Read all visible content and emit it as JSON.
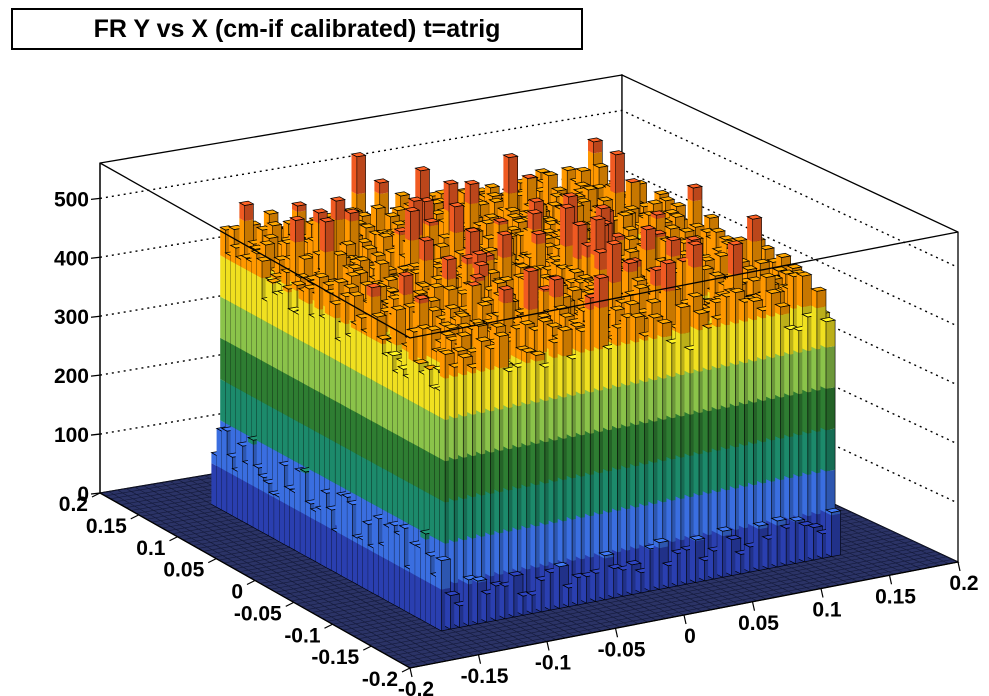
{
  "chart_data": {
    "type": "lego3d",
    "title": "FR Y vs X (cm-if calibrated) t=atrig",
    "xlabel": "",
    "ylabel": "",
    "zlabel": "",
    "xlim": [
      -0.2,
      0.2
    ],
    "ylim": [
      -0.2,
      0.2
    ],
    "zlim": [
      0,
      560
    ],
    "x_ticks": [
      "-0.2",
      "-0.15",
      "-0.1",
      "-0.05",
      "0",
      "0.05",
      "0.1",
      "0.15",
      "0.2"
    ],
    "y_ticks": [
      "-0.2",
      "-0.15",
      "-0.1",
      "-0.05",
      "0",
      "0.05",
      "0.1",
      "0.15",
      "0.2"
    ],
    "z_ticks": [
      "0",
      "100",
      "200",
      "300",
      "400",
      "500"
    ],
    "grid": true,
    "bins_x": 60,
    "bins_y": 60,
    "populated_region": {
      "x": [
        -0.15,
        0.15
      ],
      "y": [
        -0.15,
        0.15
      ]
    },
    "bulk_height_range": [
      370,
      555
    ],
    "bulk_mean": 430,
    "edge_rows": [
      {
        "edge": "x = -0.15",
        "height_range": [
          60,
          150
        ]
      },
      {
        "edge": "y = -0.15",
        "height_range": [
          30,
          80
        ]
      }
    ],
    "outside_value": 0,
    "color_bands": [
      "#2a3fb0",
      "#3a6ee0",
      "#1c8a6b",
      "#2e7d32",
      "#8bc34a",
      "#f0e020",
      "#ff9800",
      "#f05a22"
    ]
  }
}
